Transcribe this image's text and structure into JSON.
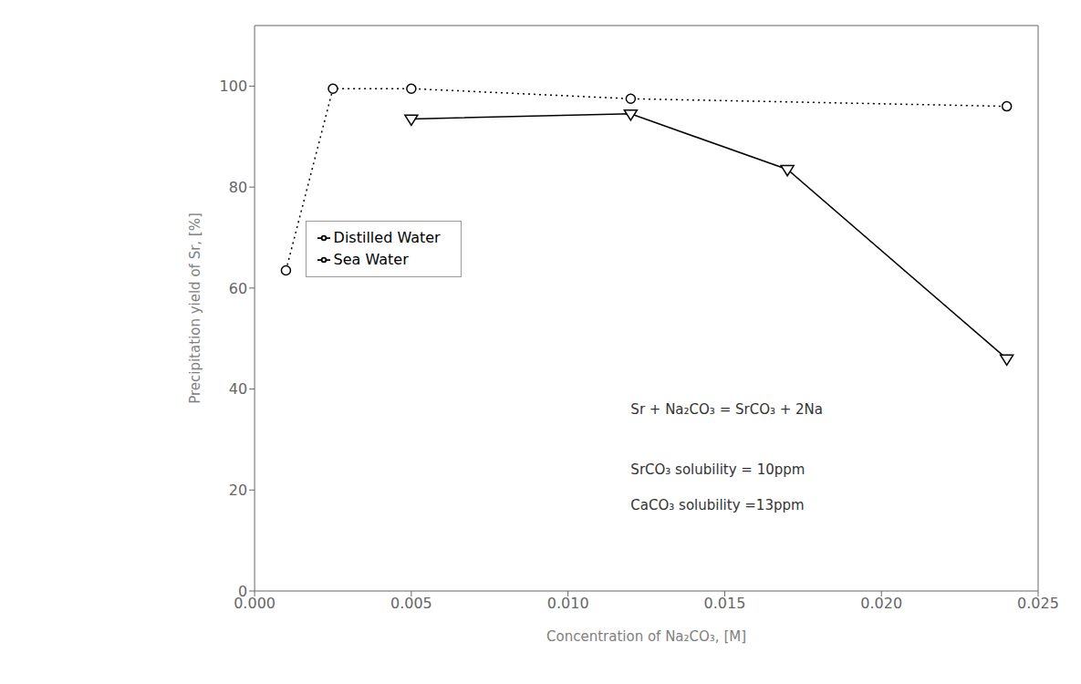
{
  "chart_data": {
    "type": "line",
    "xlabel": "Concentration of Na₂CO₃, [M]",
    "ylabel": "Precipitation yield of Sr, [%]",
    "xlim": [
      0.0,
      0.025
    ],
    "ylim": [
      0,
      112
    ],
    "xticks": [
      {
        "value": 0.0,
        "label": "0.000"
      },
      0.005,
      {
        "value": 0.01,
        "label": "0.010"
      },
      0.015,
      {
        "value": 0.02,
        "label": "0.020"
      },
      0.025
    ],
    "yticks": [
      0,
      20,
      40,
      60,
      80,
      100
    ],
    "series": [
      {
        "name": "Distilled Water",
        "color": "#000000",
        "line_style": "dotted",
        "marker": "circle",
        "x": [
          0.001,
          0.0025,
          0.005,
          0.012,
          0.024
        ],
        "values": [
          63.5,
          99.5,
          99.5,
          97.5,
          96.0
        ]
      },
      {
        "name": "Sea Water",
        "color": "#000000",
        "line_style": "solid",
        "marker": "triangle-down",
        "x": [
          0.005,
          0.012,
          0.017,
          0.024
        ],
        "values": [
          93.5,
          94.5,
          83.5,
          46.0
        ]
      }
    ],
    "legend": "upper left",
    "grid": false,
    "annotations": [
      {
        "text": "Sr + Na₂CO₃ = SrCO₃ + 2Na",
        "x": 0.012,
        "y": 36
      },
      {
        "text": "SrCO₃ solubility = 10ppm",
        "x": 0.012,
        "y": 24
      },
      {
        "text": "CaCO₃ solubility =13ppm",
        "x": 0.012,
        "y": 17
      }
    ]
  }
}
